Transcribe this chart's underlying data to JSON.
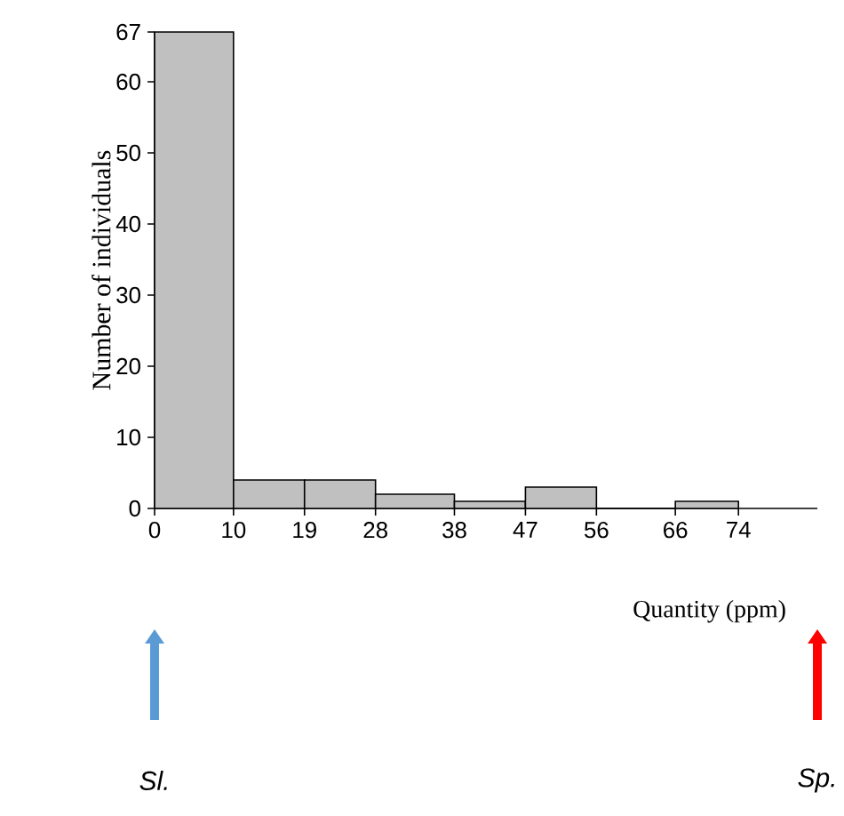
{
  "chart_data": {
    "type": "histogram",
    "xlabel": "Quantity (ppm)",
    "ylabel": "Number of individuals",
    "bins": [
      0,
      10,
      19,
      28,
      38,
      47,
      56,
      66,
      74
    ],
    "values": [
      67,
      4,
      4,
      2,
      1,
      3,
      0,
      1
    ],
    "color": "#c0c0c0",
    "xlim": [
      0,
      84
    ],
    "ylim": [
      0,
      67
    ],
    "xticks": [
      0,
      10,
      19,
      28,
      38,
      47,
      56,
      66,
      74
    ],
    "yticks": [
      0,
      10,
      20,
      30,
      40,
      50,
      60,
      67
    ],
    "annotations": [
      "Sl.",
      "Sp."
    ]
  }
}
